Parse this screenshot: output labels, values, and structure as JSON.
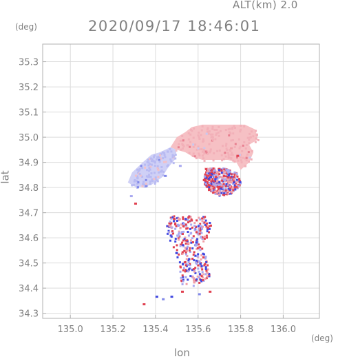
{
  "header": {
    "altitude_text": "ALT(km)  2.0",
    "timestamp": "2020/09/17 18:46:01"
  },
  "axes": {
    "y_unit": "(deg)",
    "x_unit": "(deg)",
    "y_label": "lat",
    "x_label": "lon"
  },
  "chart_data": {
    "type": "heatmap",
    "xlabel": "lon",
    "ylabel": "lat",
    "xlim": [
      134.87,
      136.17
    ],
    "ylim": [
      34.28,
      35.37
    ],
    "x_ticks": [
      135.0,
      135.2,
      135.4,
      135.6,
      135.8,
      136.0
    ],
    "x_tick_labels": [
      "135.0",
      "135.2",
      "135.4",
      "135.6",
      "135.8",
      "136.0"
    ],
    "y_ticks": [
      34.3,
      34.4,
      34.5,
      34.6,
      34.7,
      34.8,
      34.9,
      35.0,
      35.1,
      35.2,
      35.3
    ],
    "y_tick_labels": [
      "34.3",
      "34.4",
      "34.5",
      "34.6",
      "34.7",
      "34.8",
      "34.9",
      "35.0",
      "35.1",
      "35.2",
      "35.3"
    ],
    "grid": true,
    "colors": {
      "positive": "#f0a0a8",
      "negative": "#a8a8f0",
      "strong_positive": "#e04050",
      "strong_negative": "#4048e0",
      "axis": "#b0b0b0",
      "grid": "#dcdcdc"
    },
    "regions": [
      {
        "name": "northern-echo-mass",
        "sign": "positive",
        "outline": [
          [
            135.57,
            35.04
          ],
          [
            135.62,
            35.05
          ],
          [
            135.72,
            35.05
          ],
          [
            135.82,
            35.05
          ],
          [
            135.87,
            35.03
          ],
          [
            135.88,
            34.99
          ],
          [
            135.84,
            34.97
          ],
          [
            135.86,
            34.94
          ],
          [
            135.84,
            34.9
          ],
          [
            135.8,
            34.87
          ],
          [
            135.78,
            34.9
          ],
          [
            135.74,
            34.91
          ],
          [
            135.68,
            34.91
          ],
          [
            135.62,
            34.91
          ],
          [
            135.58,
            34.92
          ],
          [
            135.54,
            34.94
          ],
          [
            135.5,
            34.95
          ],
          [
            135.47,
            34.96
          ],
          [
            135.5,
            35.0
          ],
          [
            135.54,
            35.02
          ]
        ]
      },
      {
        "name": "western-echo-mass",
        "sign": "negative",
        "outline": [
          [
            135.42,
            34.94
          ],
          [
            135.47,
            34.96
          ],
          [
            135.5,
            34.95
          ],
          [
            135.49,
            34.91
          ],
          [
            135.46,
            34.88
          ],
          [
            135.43,
            34.84
          ],
          [
            135.38,
            34.81
          ],
          [
            135.31,
            34.8
          ],
          [
            135.27,
            34.82
          ],
          [
            135.29,
            34.86
          ],
          [
            135.34,
            34.9
          ],
          [
            135.38,
            34.93
          ]
        ]
      },
      {
        "name": "southern-echo-cluster",
        "sign": "mixed",
        "outline": [
          [
            135.47,
            34.69
          ],
          [
            135.53,
            34.69
          ],
          [
            135.59,
            34.69
          ],
          [
            135.63,
            34.69
          ],
          [
            135.66,
            34.66
          ],
          [
            135.64,
            34.61
          ],
          [
            135.62,
            34.57
          ],
          [
            135.64,
            34.5
          ],
          [
            135.65,
            34.45
          ],
          [
            135.6,
            34.42
          ],
          [
            135.54,
            34.4
          ],
          [
            135.51,
            34.43
          ],
          [
            135.51,
            34.47
          ],
          [
            135.49,
            34.55
          ],
          [
            135.46,
            34.6
          ],
          [
            135.44,
            34.65
          ]
        ]
      },
      {
        "name": "eastern-scatter",
        "sign": "mixed",
        "outline": [
          [
            135.63,
            34.88
          ],
          [
            135.72,
            34.88
          ],
          [
            135.78,
            34.86
          ],
          [
            135.8,
            34.82
          ],
          [
            135.76,
            34.78
          ],
          [
            135.7,
            34.77
          ],
          [
            135.66,
            34.78
          ],
          [
            135.62,
            34.82
          ]
        ]
      }
    ]
  }
}
